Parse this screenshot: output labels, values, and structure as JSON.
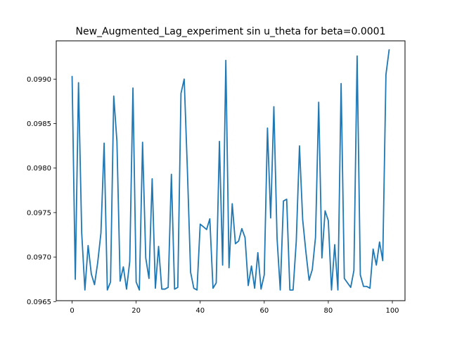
{
  "chart_data": {
    "type": "line",
    "title": "New_Augmented_Lag_experiment sin u_theta for beta=0.0001",
    "xlabel": "",
    "ylabel": "",
    "xlim": [
      -4.95,
      103.95
    ],
    "ylim": [
      0.09651,
      0.09943
    ],
    "xticks": [
      0,
      20,
      40,
      60,
      80,
      100
    ],
    "xtick_labels": [
      "0",
      "20",
      "40",
      "60",
      "80",
      "100"
    ],
    "yticks": [
      0.0965,
      0.097,
      0.0975,
      0.098,
      0.0985,
      0.099
    ],
    "ytick_labels": [
      "0.0965",
      "0.0970",
      "0.0975",
      "0.0980",
      "0.0985",
      "0.0990"
    ],
    "grid": false,
    "series": [
      {
        "name": "",
        "color": "#1f77b4",
        "x": [
          0,
          1,
          2,
          3,
          4,
          5,
          6,
          7,
          8,
          9,
          10,
          11,
          12,
          13,
          14,
          15,
          16,
          17,
          18,
          19,
          20,
          21,
          22,
          23,
          24,
          25,
          26,
          27,
          28,
          29,
          30,
          31,
          32,
          33,
          34,
          35,
          36,
          37,
          38,
          39,
          40,
          41,
          42,
          43,
          44,
          45,
          46,
          47,
          48,
          49,
          50,
          51,
          52,
          53,
          54,
          55,
          56,
          57,
          58,
          59,
          60,
          61,
          62,
          63,
          64,
          65,
          66,
          67,
          68,
          69,
          70,
          71,
          72,
          73,
          74,
          75,
          76,
          77,
          78,
          79,
          80,
          81,
          82,
          83,
          84,
          85,
          86,
          87,
          88,
          89,
          90,
          91,
          92,
          93,
          94,
          95,
          96,
          97,
          98,
          99
        ],
        "values": [
          0.09903,
          0.09675,
          0.09896,
          0.09727,
          0.09663,
          0.09713,
          0.09681,
          0.09669,
          0.09694,
          0.09727,
          0.09828,
          0.09663,
          0.09672,
          0.09881,
          0.0983,
          0.09673,
          0.09689,
          0.09664,
          0.09695,
          0.0989,
          0.09672,
          0.09663,
          0.09829,
          0.09699,
          0.09676,
          0.09788,
          0.09665,
          0.09712,
          0.09664,
          0.09664,
          0.09666,
          0.09793,
          0.09664,
          0.09666,
          0.09884,
          0.099,
          0.09798,
          0.09683,
          0.09665,
          0.09663,
          0.09737,
          0.09734,
          0.09731,
          0.09743,
          0.09665,
          0.09671,
          0.0983,
          0.09691,
          0.09921,
          0.09688,
          0.0976,
          0.09715,
          0.09718,
          0.09732,
          0.09722,
          0.09668,
          0.0969,
          0.09665,
          0.09705,
          0.09664,
          0.0968,
          0.09845,
          0.09744,
          0.09869,
          0.09721,
          0.09663,
          0.09763,
          0.09765,
          0.09663,
          0.09663,
          0.09718,
          0.09825,
          0.09742,
          0.09706,
          0.09674,
          0.09686,
          0.09722,
          0.09874,
          0.09699,
          0.09752,
          0.09741,
          0.09663,
          0.09714,
          0.09663,
          0.09895,
          0.09676,
          0.09671,
          0.09666,
          0.09685,
          0.09926,
          0.0968,
          0.09667,
          0.09667,
          0.09665,
          0.09709,
          0.09691,
          0.09717,
          0.09696,
          0.09905,
          0.09933
        ]
      }
    ]
  }
}
